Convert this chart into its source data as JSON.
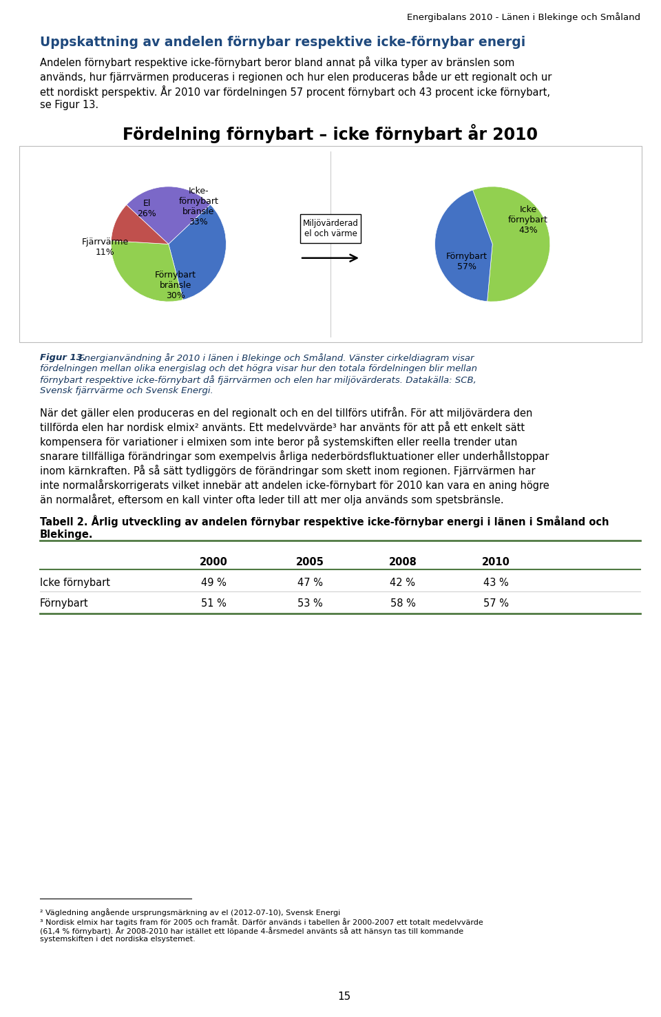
{
  "header_text": "Energibalans 2010 - Länen i Blekinge och Småland",
  "title_heading": "Uppskattning av andelen förnybar respektive icke-förnybar energi",
  "body1_lines": [
    "Andelen förnybart respektive icke-förnybart beror bland annat på vilka typer av bränslen som",
    "används, hur fjärrvärmen produceras i regionen och hur elen produceras både ur ett regionalt och ur",
    "ett nordiskt perspektiv. År 2010 var fördelningen 57 procent förnybart och 43 procent icke förnybart,",
    "se Figur 13."
  ],
  "chart_title": "Fördelning förnybart – icke förnybart år 2010",
  "pie1_values": [
    26,
    33,
    30,
    11
  ],
  "pie1_colors": [
    "#7B68C8",
    "#4472C4",
    "#92D050",
    "#C0504D"
  ],
  "pie1_startangle": 137,
  "pie2_values": [
    57,
    43
  ],
  "pie2_colors": [
    "#92D050",
    "#4472C4"
  ],
  "pie2_startangle": 110,
  "arrow_label": "Miljövärderad\nel och värme",
  "figcaption_bold": "Figur 13.",
  "figcaption_rest_line1": " Energianvändning år 2010 i länen i Blekinge och Småland. Vänster cirkeldiagram visar",
  "figcaption_lines": [
    "fördelningen mellan olika energislag och det högra visar hur den totala fördelningen blir mellan",
    "förnybart respektive icke-förnybart då fjärrvärmen och elen har miljövärderats. Datakälla: SCB,",
    "Svensk fjärrvärme och Svensk Energi."
  ],
  "body2_lines": [
    "När det gäller elen produceras en del regionalt och en del tillförs utifrån. För att miljövärdera den",
    "tillförda elen har nordisk elmix² använts. Ett medelvvärde³ har använts för att på ett enkelt sätt",
    "kompensera för variationer i elmixen som inte beror på systemskiften eller reella trender utan",
    "snarare tillfälliga förändringar som exempelvis årliga nederbördsfluktuationer eller underhållstoppar",
    "inom kärnkraften. På så sätt tydliggörs de förändringar som skett inom regionen. Fjärrvärmen har",
    "inte normalårskorrigerats vilket innebär att andelen icke-förnybart för 2010 kan vara en aning högre",
    "än normalåret, eftersom en kall vinter ofta leder till att mer olja används som spetsbränsle."
  ],
  "table_title_line1": "Tabell 2. Årlig utveckling av andelen förnybar respektive icke-förnybar energi i länen i Småland och",
  "table_title_line2": "Blekinge.",
  "table_headers": [
    "",
    "2000",
    "2005",
    "2008",
    "2010"
  ],
  "table_rows": [
    [
      "Icke förnybart",
      "49 %",
      "47 %",
      "42 %",
      "43 %"
    ],
    [
      "Förnybart",
      "51 %",
      "53 %",
      "58 %",
      "57 %"
    ]
  ],
  "footnote1": "² Vägledning angående ursprungsmärkning av el (2012-07-10), Svensk Energi",
  "footnote2_lines": [
    "³ Nordisk elmix har tagits fram för 2005 och framåt. Därför används i tabellen år 2000-2007 ett totalt medelvvärde",
    "(61,4 % förnybart). År 2008-2010 har istället ett löpande 4-årsmedel använts så att hänsyn tas till kommande",
    "systemskiften i det nordiska elsystemet."
  ],
  "page_number": "15",
  "bg_color": "#FFFFFF",
  "text_color": "#000000",
  "heading_color": "#1F497D",
  "caption_color": "#17375E",
  "table_green": "#4F7942"
}
